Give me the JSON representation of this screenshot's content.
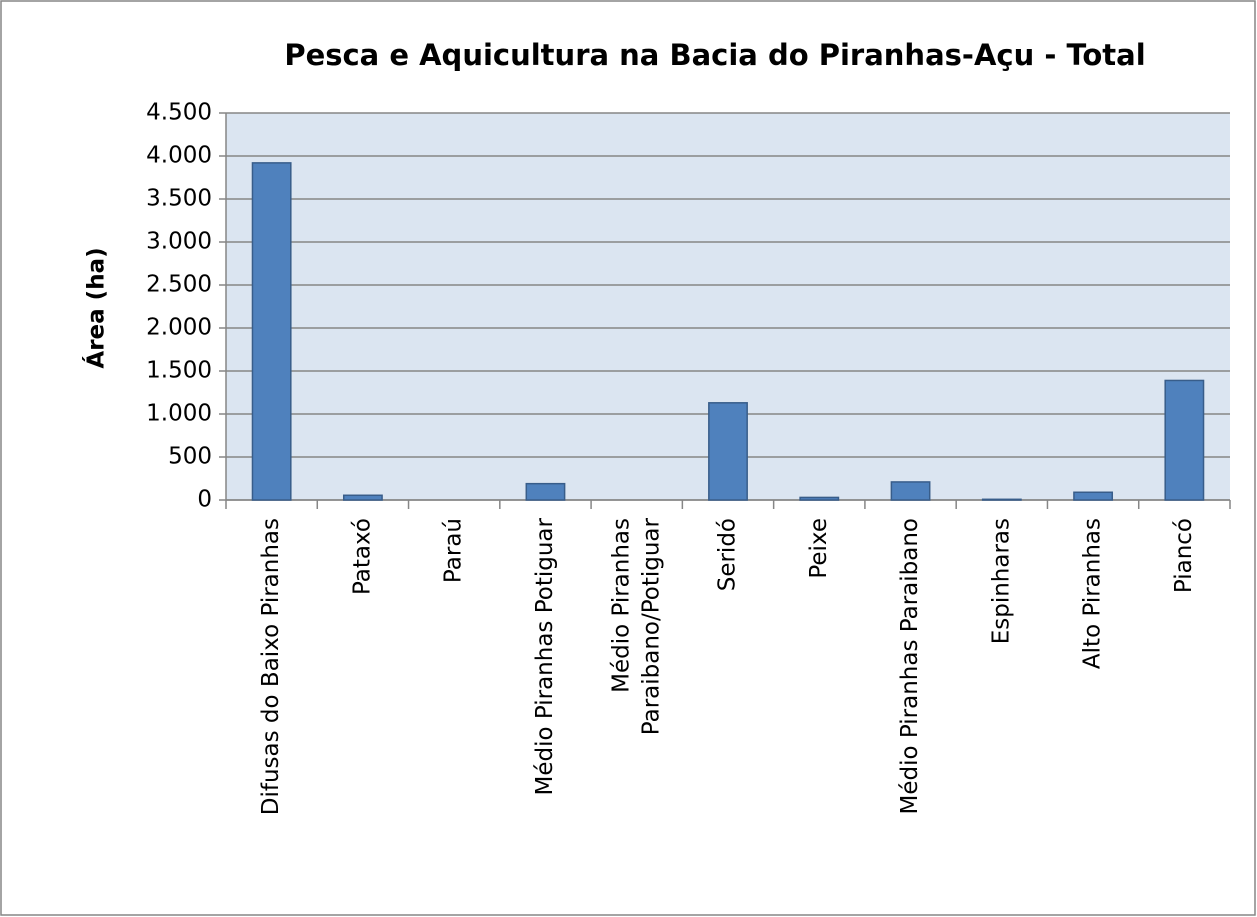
{
  "chart_data": {
    "type": "bar",
    "title": "Pesca e Aquicultura na Bacia do Piranhas-Açu - Total",
    "y_label": "Área (ha)",
    "categories": [
      "Difusas do Baixo Piranhas",
      "Pataxó",
      "Paraú",
      "Médio Piranhas Potiguar",
      "Médio Piranhas Paraibano/Potiguar",
      "Seridó",
      "Peixe",
      "Médio Piranhas Paraibano",
      "Espinharas",
      "Alto Piranhas",
      "Piancó"
    ],
    "values": [
      3920,
      55,
      0,
      190,
      0,
      1130,
      30,
      210,
      8,
      90,
      1390
    ],
    "color": "#4f81bd",
    "ylim": [
      0,
      4500
    ],
    "yticks": [
      0,
      {
        "value": 500,
        "label": "500"
      },
      {
        "value": 1000,
        "label": "1.000"
      },
      {
        "value": 1500,
        "label": "1.500"
      },
      {
        "value": 2000,
        "label": "2.000"
      },
      {
        "value": 2500,
        "label": "2.500"
      },
      {
        "value": 3000,
        "label": "3.000"
      },
      {
        "value": 3500,
        "label": "3.500"
      },
      {
        "value": 4000,
        "label": "4.000"
      },
      {
        "value": 4500,
        "label": "4.500"
      }
    ],
    "grid": true
  }
}
